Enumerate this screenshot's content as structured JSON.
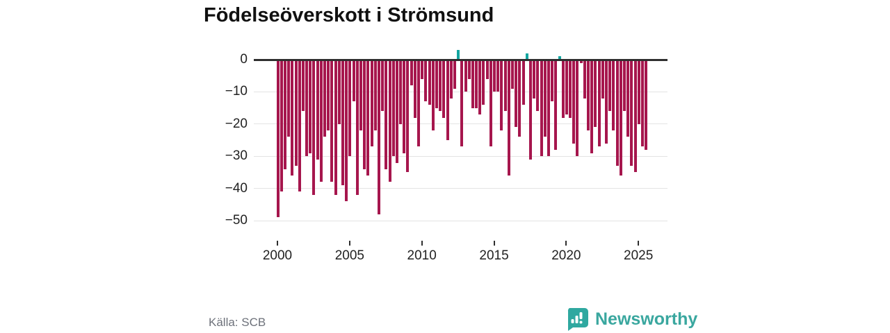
{
  "title": "Födelseöverskott i Strömsund",
  "source": "Källa: SCB",
  "brand": {
    "name": "Newsworthy",
    "logo_icon": "bar-chart-speech-bubble-icon"
  },
  "colors": {
    "negative_bar": "#a6164d",
    "positive_bar": "#14a5a0",
    "axis": "#2f2f2f",
    "grid": "#e3e3e3",
    "brand_teal": "#3aa79f",
    "text": "#222222",
    "muted_text": "#6d717a"
  },
  "chart_data": {
    "type": "bar",
    "title": "Födelseöverskott i Strömsund",
    "frequency": "quarterly",
    "start_year": 2000,
    "end_label": "2025-Q3",
    "xlabel": "",
    "ylabel": "",
    "ylim": [
      -52,
      4
    ],
    "grid": "horizontal",
    "legend": "none",
    "x_tick_labels": [
      "2000",
      "2005",
      "2010",
      "2015",
      "2020",
      "2025"
    ],
    "x_tick_years": [
      2000,
      2005,
      2010,
      2015,
      2020,
      2025
    ],
    "y_tick_labels": [
      "0",
      "−10",
      "−20",
      "−30",
      "−40",
      "−50"
    ],
    "y_tick_values": [
      0,
      -10,
      -20,
      -30,
      -40,
      -50
    ],
    "values": [
      -49,
      -41,
      -34,
      -24,
      -36,
      -33,
      -41,
      -16,
      -30,
      -29,
      -42,
      -31,
      -38,
      -24,
      -22,
      -38,
      -42,
      -20,
      -39,
      -44,
      -30,
      -13,
      -42,
      -22,
      -34,
      -36,
      -27,
      -22,
      -48,
      -16,
      -34,
      -38,
      -30,
      -32,
      -20,
      -29,
      -35,
      -8,
      -18,
      -27,
      -6,
      -13,
      -14,
      -22,
      -15,
      -16,
      -18,
      -25,
      -12,
      -9,
      3,
      -27,
      -10,
      -6,
      -15,
      -15,
      -17,
      -14,
      -6,
      -27,
      -10,
      -10,
      -22,
      -16,
      -36,
      -9,
      -21,
      -24,
      -14,
      2,
      -31,
      -12,
      -16,
      -30,
      -24,
      -30,
      -13,
      -28,
      1,
      -18,
      -17,
      -18,
      -26,
      -30,
      -1,
      -12,
      -22,
      -29,
      -21,
      -27,
      -12,
      -26,
      -16,
      -22,
      -33,
      -36,
      -16,
      -24,
      -33,
      -35,
      -20,
      -27,
      -28
    ]
  }
}
